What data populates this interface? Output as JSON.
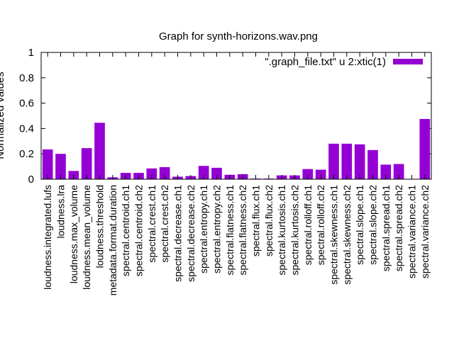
{
  "chart_data": {
    "type": "bar",
    "title": "Graph for synth-horizons.wav.png",
    "xlabel": "",
    "ylabel": "Normalized values",
    "ylim": [
      0,
      1
    ],
    "yticks": [
      "0",
      "0.2",
      "0.4",
      "0.6",
      "0.8",
      "1"
    ],
    "grid": false,
    "legend_position": "top-right",
    "series": [
      {
        "name": "\".graph_file.txt\" u 2:xtic(1)",
        "color": "#9400d3",
        "values": [
          0.235,
          0.2,
          0.065,
          0.245,
          0.445,
          0.015,
          0.05,
          0.05,
          0.085,
          0.095,
          0.02,
          0.025,
          0.105,
          0.09,
          0.035,
          0.04,
          0.005,
          0.005,
          0.03,
          0.03,
          0.08,
          0.075,
          0.28,
          0.28,
          0.275,
          0.23,
          0.115,
          0.12,
          0.0,
          0.475
        ]
      }
    ],
    "categories": [
      "loudness.integrated.lufs",
      "loudness.lra",
      "loudness.max_volume",
      "loudness.mean_volume",
      "loudness.threshold",
      "metadata.format.duration",
      "spectral.centroid.ch1",
      "spectral.centroid.ch2",
      "spectral.crest.ch1",
      "spectral.crest.ch2",
      "spectral.decrease.ch1",
      "spectral.decrease.ch2",
      "spectral.entropy.ch1",
      "spectral.entropy.ch2",
      "spectral.flatness.ch1",
      "spectral.flatness.ch2",
      "spectral.flux.ch1",
      "spectral.flux.ch2",
      "spectral.kurtosis.ch1",
      "spectral.kurtosis.ch2",
      "spectral.rolloff.ch1",
      "spectral.rolloff.ch2",
      "spectral.skewness.ch1",
      "spectral.skewness.ch2",
      "spectral.slope.ch1",
      "spectral.slope.ch2",
      "spectral.spread.ch1",
      "spectral.spread.ch2",
      "spectral.variance.ch1",
      "spectral.variance.ch2"
    ]
  }
}
